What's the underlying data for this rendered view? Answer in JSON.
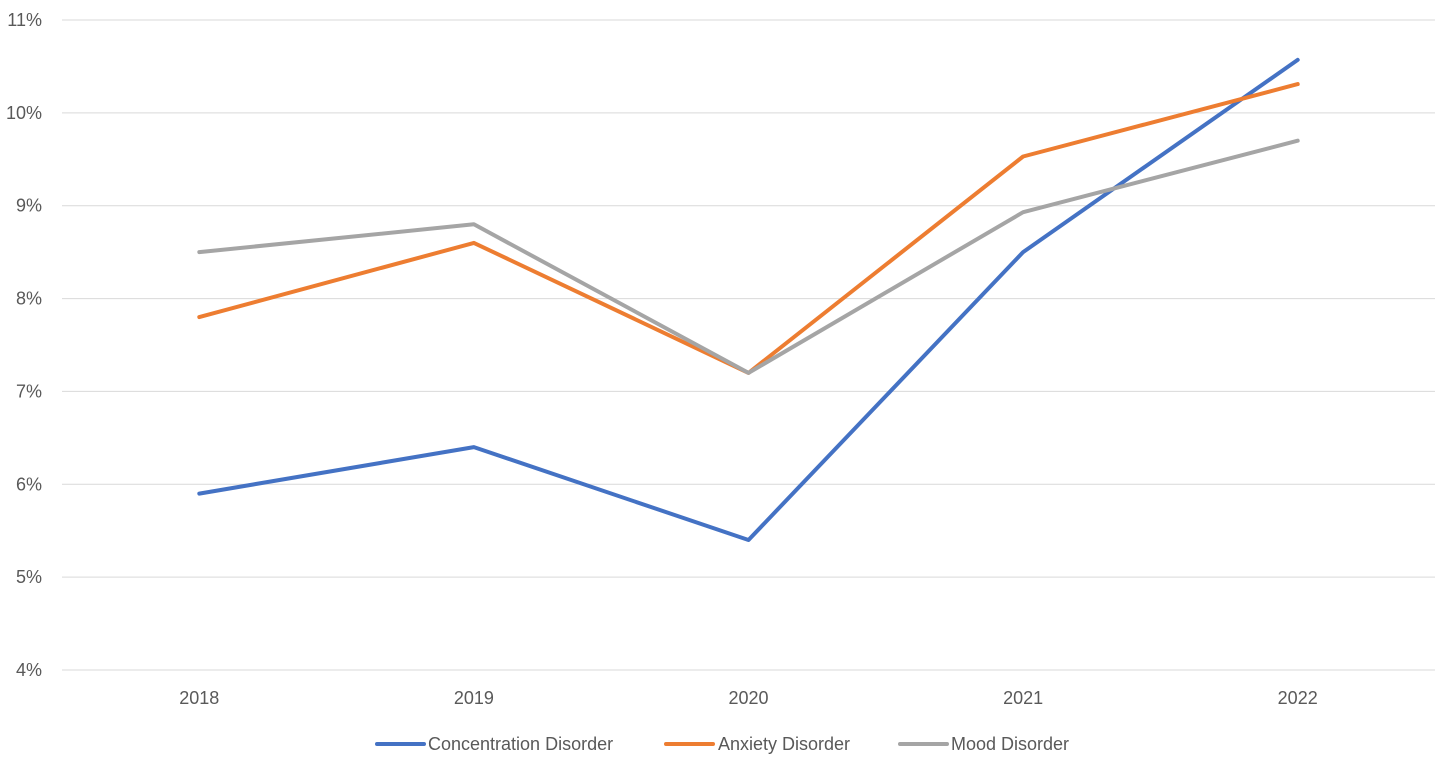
{
  "chart_data": {
    "type": "line",
    "title": "",
    "xlabel": "",
    "ylabel": "",
    "categories": [
      "2018",
      "2019",
      "2020",
      "2021",
      "2022"
    ],
    "ylim": [
      4,
      11
    ],
    "yticks": [
      4,
      5,
      6,
      7,
      8,
      9,
      10,
      11
    ],
    "ytick_labels": [
      "4%",
      "5%",
      "6%",
      "7%",
      "8%",
      "9%",
      "10%",
      "11%"
    ],
    "grid": "horizontal",
    "legend_position": "bottom",
    "series": [
      {
        "name": "Concentration Disorder",
        "color": "#4472c4",
        "values": [
          5.9,
          6.4,
          5.4,
          8.5,
          10.57
        ]
      },
      {
        "name": "Anxiety Disorder",
        "color": "#ed7d31",
        "values": [
          7.8,
          8.6,
          7.2,
          9.53,
          10.31
        ]
      },
      {
        "name": "Mood Disorder",
        "color": "#a5a5a5",
        "values": [
          8.5,
          8.8,
          7.2,
          8.93,
          9.7
        ]
      }
    ]
  }
}
